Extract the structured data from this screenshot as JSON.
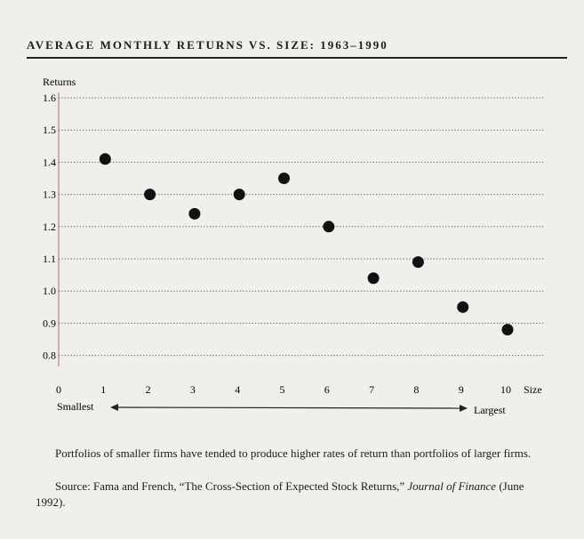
{
  "title": "AVERAGE MONTHLY RETURNS VS. SIZE: 1963–1990",
  "caption": {
    "text": "Portfolios of smaller firms have tended to produce higher rates of return than portfolios of larger firms.",
    "source_prefix": "Source: Fama and French, “The Cross-Section of Expected Stock Returns,”",
    "source_journal": "Journal of Finance",
    "source_suffix": " (June 1992)."
  },
  "chart_data": {
    "type": "scatter",
    "title": "AVERAGE MONTHLY RETURNS VS. SIZE: 1963–1990",
    "ylabel": "Returns",
    "xlabel": "Size",
    "xlim": [
      0,
      10
    ],
    "ylim": [
      0.8,
      1.6
    ],
    "xticks": [
      "0",
      "1",
      "2",
      "3",
      "4",
      "5",
      "6",
      "7",
      "8",
      "9",
      "10"
    ],
    "yticks": [
      "0.8",
      "0.9",
      "1.0",
      "1.1",
      "1.2",
      "1.3",
      "1.4",
      "1.5",
      "1.6"
    ],
    "grid": "horizontal-dotted",
    "arrow_labels": {
      "left": "Smallest",
      "right": "Largest"
    },
    "x": [
      1,
      2,
      3,
      4,
      5,
      6,
      7,
      8,
      9,
      10
    ],
    "y": [
      1.41,
      1.3,
      1.24,
      1.3,
      1.35,
      1.2,
      1.04,
      1.09,
      0.95,
      0.88
    ],
    "colors": {
      "points": "#111111",
      "grid": "#555555",
      "axis": "#b07070"
    }
  }
}
